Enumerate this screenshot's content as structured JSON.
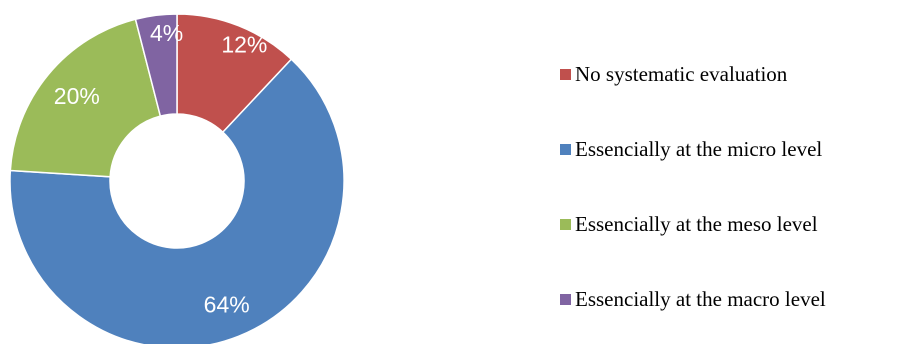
{
  "chart_data": {
    "type": "pie",
    "variant": "donut",
    "title": "",
    "categories": [
      "No systematic evaluation",
      "Essencially at the micro level",
      "Essencially at the meso level",
      "Essencially at the macro level"
    ],
    "values": [
      12,
      64,
      20,
      4
    ],
    "data_labels": [
      "12%",
      "64%",
      "20%",
      "4%"
    ],
    "colors": [
      "#C0504D",
      "#4F81BD",
      "#9BBB59",
      "#8064A2"
    ],
    "legend_position": "right"
  }
}
